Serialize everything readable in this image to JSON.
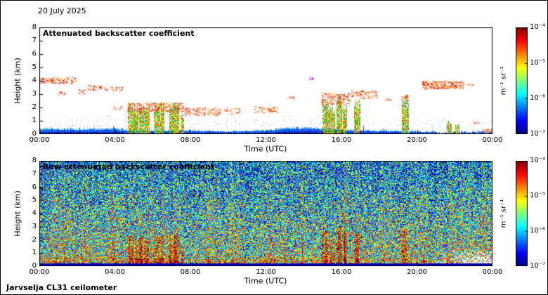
{
  "figure": {
    "date_label": "20 July 2025",
    "footer_label": "Jarvselja CL31 ceilometer",
    "background_color": "#ffffff"
  },
  "chart_data": [
    {
      "type": "heatmap",
      "panel": "top",
      "title": "Attenuated backscatter coefficient",
      "xlabel": "Time (UTC)",
      "ylabel": "Height (km)",
      "x_ticks": [
        "00:00",
        "04:00",
        "08:00",
        "12:00",
        "16:00",
        "20:00",
        "00:00"
      ],
      "y_ticks": [
        "0",
        "1",
        "2",
        "3",
        "4",
        "5",
        "6",
        "7",
        "8"
      ],
      "xlim_hours": [
        0,
        24
      ],
      "ylim_km": [
        0,
        8
      ],
      "colormap": "jet",
      "scale": "log10",
      "colorbar_ticks": [
        "10⁻⁴",
        "10⁻⁵",
        "10⁻⁶",
        "10⁻⁷"
      ],
      "colorbar_max": "1e-4",
      "colorbar_min": "1e-7",
      "unit_label": "m⁻¹ sr⁻¹",
      "boundary_layer_km": [
        [
          0,
          0.45
        ],
        [
          2,
          0.42
        ],
        [
          4,
          0.5
        ],
        [
          4.7,
          0.32
        ],
        [
          8,
          0.3
        ],
        [
          10,
          0.26
        ],
        [
          12,
          0.32
        ],
        [
          13,
          0.5
        ],
        [
          14,
          0.55
        ],
        [
          15,
          0.5
        ],
        [
          16,
          0.4
        ],
        [
          18,
          0.3
        ],
        [
          20,
          0.25
        ],
        [
          21.5,
          0.18
        ],
        [
          23,
          0.2
        ],
        [
          24,
          0.24
        ]
      ],
      "cloud_segments": [
        {
          "t0": 0.0,
          "t1": 0.75,
          "h0": 3.85,
          "h1": 4.2,
          "density": 0.9,
          "palette": "warm"
        },
        {
          "t0": 0.7,
          "t1": 1.9,
          "h0": 3.75,
          "h1": 4.3,
          "density": 0.45,
          "palette": "warm"
        },
        {
          "t0": 1.0,
          "t1": 1.35,
          "h0": 2.95,
          "h1": 3.18,
          "density": 0.7,
          "palette": "warm"
        },
        {
          "t0": 1.9,
          "t1": 2.45,
          "h0": 3.0,
          "h1": 3.35,
          "density": 0.35,
          "palette": "warm"
        },
        {
          "t0": 2.45,
          "t1": 3.3,
          "h0": 3.3,
          "h1": 3.75,
          "density": 0.45,
          "palette": "warm"
        },
        {
          "t0": 3.3,
          "t1": 4.5,
          "h0": 3.25,
          "h1": 3.6,
          "density": 0.3,
          "palette": "warm"
        },
        {
          "t0": 3.8,
          "t1": 4.35,
          "h0": 1.85,
          "h1": 2.1,
          "density": 0.35,
          "palette": "warm"
        },
        {
          "t0": 4.6,
          "t1": 7.6,
          "h0": 1.7,
          "h1": 2.35,
          "density": 0.6,
          "palette": "warm"
        },
        {
          "t0": 7.6,
          "t1": 9.6,
          "h0": 1.4,
          "h1": 2.0,
          "density": 0.45,
          "palette": "warm"
        },
        {
          "t0": 9.7,
          "t1": 10.6,
          "h0": 1.5,
          "h1": 1.95,
          "density": 0.3,
          "palette": "warm"
        },
        {
          "t0": 11.3,
          "t1": 12.6,
          "h0": 1.6,
          "h1": 2.1,
          "density": 0.3,
          "palette": "warm"
        },
        {
          "t0": 12.05,
          "t1": 12.45,
          "h0": 1.7,
          "h1": 1.95,
          "density": 0.8,
          "palette": "warm"
        },
        {
          "t0": 13.15,
          "t1": 13.5,
          "h0": 2.65,
          "h1": 2.9,
          "density": 0.5,
          "palette": "warm"
        },
        {
          "t0": 14.25,
          "t1": 14.5,
          "h0": 4.05,
          "h1": 4.3,
          "density": 0.9,
          "palette": "purple"
        },
        {
          "t0": 14.9,
          "t1": 16.45,
          "h0": 2.2,
          "h1": 3.1,
          "density": 0.5,
          "palette": "warm"
        },
        {
          "t0": 16.5,
          "t1": 17.85,
          "h0": 2.7,
          "h1": 3.3,
          "density": 0.45,
          "palette": "warm"
        },
        {
          "t0": 18.3,
          "t1": 18.65,
          "h0": 2.5,
          "h1": 2.75,
          "density": 0.4,
          "palette": "warm"
        },
        {
          "t0": 19.15,
          "t1": 19.55,
          "h0": 2.55,
          "h1": 2.95,
          "density": 0.6,
          "palette": "warm"
        },
        {
          "t0": 20.25,
          "t1": 22.45,
          "h0": 3.4,
          "h1": 4.0,
          "density": 0.85,
          "palette": "warm"
        },
        {
          "t0": 22.55,
          "t1": 22.95,
          "h0": 3.55,
          "h1": 3.8,
          "density": 0.3,
          "palette": "warm"
        },
        {
          "t0": 23.0,
          "t1": 23.25,
          "h0": 0.75,
          "h1": 1.0,
          "density": 0.4,
          "palette": "warm"
        },
        {
          "t0": 23.45,
          "t1": 23.95,
          "h0": 0.1,
          "h1": 0.4,
          "density": 0.8,
          "palette": "warm"
        }
      ],
      "precip_columns": [
        {
          "t0": 4.7,
          "t1": 5.0,
          "h_top": 2.3
        },
        {
          "t0": 5.05,
          "t1": 5.2,
          "h_top": 1.9
        },
        {
          "t0": 5.3,
          "t1": 5.5,
          "h_top": 2.2
        },
        {
          "t0": 5.55,
          "t1": 5.8,
          "h_top": 2.1
        },
        {
          "t0": 6.1,
          "t1": 6.55,
          "h_top": 2.35
        },
        {
          "t0": 6.9,
          "t1": 7.35,
          "h_top": 2.4
        },
        {
          "t0": 7.5,
          "t1": 7.62,
          "h_top": 1.6
        },
        {
          "t0": 15.0,
          "t1": 15.3,
          "h_top": 2.6
        },
        {
          "t0": 15.4,
          "t1": 15.6,
          "h_top": 2.2
        },
        {
          "t0": 15.75,
          "t1": 16.0,
          "h_top": 3.0
        },
        {
          "t0": 16.1,
          "t1": 16.25,
          "h_top": 2.4
        },
        {
          "t0": 16.7,
          "t1": 16.95,
          "h_top": 2.5
        },
        {
          "t0": 19.2,
          "t1": 19.5,
          "h_top": 2.85
        },
        {
          "t0": 21.6,
          "t1": 21.78,
          "h_top": 1.0
        },
        {
          "t0": 22.05,
          "t1": 22.2,
          "h_top": 0.8
        }
      ]
    },
    {
      "type": "heatmap",
      "panel": "bottom",
      "title": "Raw attenuated backscatter coefficient",
      "xlabel": "Time (UTC)",
      "ylabel": "Height (km)",
      "x_ticks": [
        "00:00",
        "04:00",
        "08:00",
        "12:00",
        "16:00",
        "20:00",
        "00:00"
      ],
      "y_ticks": [
        "0",
        "1",
        "2",
        "3",
        "4",
        "5",
        "6",
        "7",
        "8"
      ],
      "xlim_hours": [
        0,
        24
      ],
      "ylim_km": [
        0,
        8
      ],
      "colormap": "jet",
      "scale": "log10",
      "colorbar_ticks": [
        "10⁻⁴",
        "10⁻⁵",
        "10⁻⁶",
        "10⁻⁷"
      ],
      "colorbar_max": "1e-4",
      "colorbar_min": "1e-7",
      "unit_label": "m⁻¹ sr⁻¹",
      "noise_description": "dense multiplicative speckle over full height range, vertical correlated streaks, stronger signal in boundary layer and precipitation columns",
      "baseline": {
        "red_line_km": 0.05,
        "dark_band_km": 0.2
      },
      "dropout_region": {
        "t_start": 20.6,
        "t_end": 24,
        "h_max_km": 1.35
      }
    }
  ]
}
